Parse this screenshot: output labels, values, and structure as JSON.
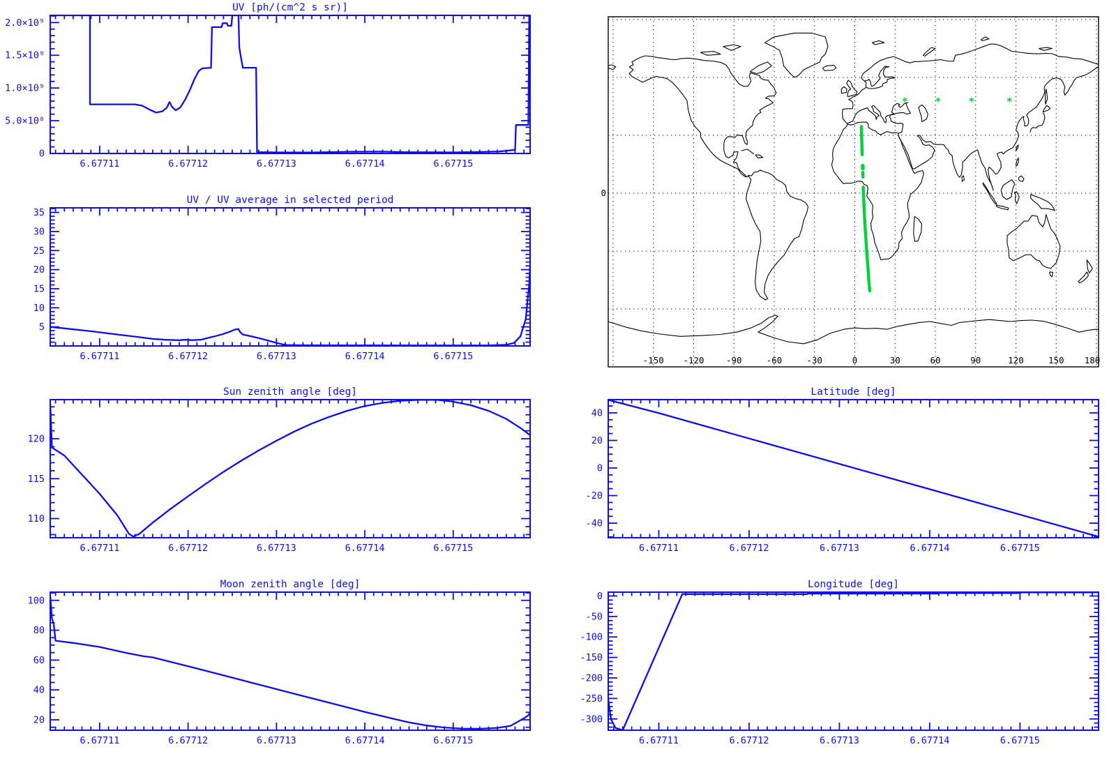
{
  "colors": {
    "plot_blue": "#0d0de8",
    "map_black": "#000000",
    "track_green": "#00d23c",
    "background": "#ffffff"
  },
  "x_axis": {
    "xlim": [
      6.6771044,
      6.6771587
    ],
    "tick_values": [
      6.67711,
      6.67712,
      6.67713,
      6.67714,
      6.67715
    ],
    "tick_labels": [
      "6.67711",
      "6.67712",
      "6.67713",
      "6.67714",
      "6.67715"
    ],
    "minor_step": 1e-06
  },
  "map": {
    "lon_labels": [
      "-150",
      "-120",
      "-90",
      "-60",
      "-30",
      "0",
      "30",
      "60",
      "90",
      "120",
      "150",
      "180"
    ],
    "lon_values": [
      -150,
      -120,
      -90,
      -60,
      -30,
      0,
      30,
      60,
      90,
      120,
      150,
      180
    ],
    "lat_edge_label": "0",
    "grid_step_deg": 30,
    "lon_range": [
      -184,
      184
    ],
    "lat_range": [
      -91,
      91
    ]
  },
  "chart_data": [
    {
      "id": "uv",
      "type": "line",
      "title": "UV [ph/(cm^2 s sr)]",
      "ylim": [
        0,
        2110000000.0
      ],
      "ytick_values": [
        0,
        500000000.0,
        1000000000.0,
        1500000000.0,
        2000000000.0
      ],
      "ytick_labels": [
        "0",
        "5.0×10⁸",
        "1.0×10⁹",
        "1.5×10⁹",
        "2.0×10⁹"
      ],
      "yminor_step": 100000000.0,
      "points": [
        [
          6.6771044,
          2110000000.0
        ],
        [
          6.6771089,
          2110000000.0
        ],
        [
          6.6771089,
          750000000.0
        ],
        [
          6.677114,
          750000000.0
        ],
        [
          6.6771148,
          730000000.0
        ],
        [
          6.6771158,
          660000000.0
        ],
        [
          6.6771164,
          625000000.0
        ],
        [
          6.6771171,
          645000000.0
        ],
        [
          6.6771176,
          700000000.0
        ],
        [
          6.6771179,
          785000000.0
        ],
        [
          6.6771182,
          710000000.0
        ],
        [
          6.6771186,
          660000000.0
        ],
        [
          6.6771191,
          700000000.0
        ],
        [
          6.6771197,
          830000000.0
        ],
        [
          6.6771202,
          970000000.0
        ],
        [
          6.6771207,
          1130000000.0
        ],
        [
          6.6771212,
          1260000000.0
        ],
        [
          6.6771216,
          1300000000.0
        ],
        [
          6.6771226,
          1310000000.0
        ],
        [
          6.6771227,
          1930000000.0
        ],
        [
          6.6771238,
          1930000000.0
        ],
        [
          6.6771239,
          1990000000.0
        ],
        [
          6.6771244,
          1990000000.0
        ],
        [
          6.6771245,
          1950000000.0
        ],
        [
          6.6771249,
          1950000000.0
        ],
        [
          6.677125,
          2110000000.0
        ],
        [
          6.6771257,
          2110000000.0
        ],
        [
          6.6771258,
          1620000000.0
        ],
        [
          6.677126,
          1450000000.0
        ],
        [
          6.6771262,
          1310000000.0
        ],
        [
          6.6771277,
          1310000000.0
        ],
        [
          6.6771278,
          20000000.0
        ],
        [
          6.67713,
          16000000.0
        ],
        [
          6.677134,
          15000000.0
        ],
        [
          6.677138,
          26000000.0
        ],
        [
          6.677142,
          28000000.0
        ],
        [
          6.677145,
          18000000.0
        ],
        [
          6.67715,
          16000000.0
        ],
        [
          6.677153,
          22000000.0
        ],
        [
          6.6771552,
          30000000.0
        ],
        [
          6.6771563,
          45000000.0
        ],
        [
          6.677157,
          55000000.0
        ],
        [
          6.6771571,
          435000000.0
        ],
        [
          6.6771585,
          435000000.0
        ],
        [
          6.6771586,
          2110000000.0
        ],
        [
          6.677159,
          2110000000.0
        ]
      ]
    },
    {
      "id": "uv_ratio",
      "type": "line",
      "title": "UV / UV average in selected period",
      "ylim": [
        0,
        36.2
      ],
      "ytick_values": [
        5,
        10,
        15,
        20,
        25,
        30,
        35
      ],
      "ytick_labels": [
        "5",
        "10",
        "15",
        "20",
        "25",
        "30",
        "35"
      ],
      "yminor_step": 1,
      "points": [
        [
          6.6771044,
          5.0
        ],
        [
          6.677106,
          4.6
        ],
        [
          6.677109,
          3.85
        ],
        [
          6.677112,
          3.0
        ],
        [
          6.677114,
          2.45
        ],
        [
          6.677116,
          1.85
        ],
        [
          6.6771175,
          1.6
        ],
        [
          6.677119,
          1.5
        ],
        [
          6.6771196,
          1.62
        ],
        [
          6.6771205,
          1.52
        ],
        [
          6.6771215,
          1.65
        ],
        [
          6.677122,
          1.95
        ],
        [
          6.677123,
          2.5
        ],
        [
          6.677124,
          3.15
        ],
        [
          6.6771248,
          3.8
        ],
        [
          6.6771253,
          4.3
        ],
        [
          6.6771257,
          4.45
        ],
        [
          6.6771259,
          3.6
        ],
        [
          6.6771262,
          3.0
        ],
        [
          6.677127,
          2.6
        ],
        [
          6.677128,
          2.05
        ],
        [
          6.677129,
          1.45
        ],
        [
          6.67713,
          0.8
        ],
        [
          6.6771307,
          0.4
        ],
        [
          6.6771312,
          0.25
        ],
        [
          6.677133,
          0.18
        ],
        [
          6.67714,
          0.15
        ],
        [
          6.677148,
          0.12
        ],
        [
          6.677154,
          0.15
        ],
        [
          6.677156,
          0.3
        ],
        [
          6.6771569,
          0.8
        ],
        [
          6.6771576,
          2.5
        ],
        [
          6.6771582,
          7.0
        ],
        [
          6.6771586,
          16.0
        ],
        [
          6.677159,
          36.0
        ]
      ]
    },
    {
      "id": "sun_zenith",
      "type": "line",
      "title": "Sun zenith angle [deg]",
      "ylim": [
        107.6,
        124.9
      ],
      "ytick_values": [
        110,
        115,
        120
      ],
      "ytick_labels": [
        "110",
        "115",
        "120"
      ],
      "yminor_step": 1,
      "points": [
        [
          6.6771044,
          124.4
        ],
        [
          6.6771046,
          118.9
        ],
        [
          6.677106,
          117.9
        ],
        [
          6.677108,
          115.5
        ],
        [
          6.67711,
          113.1
        ],
        [
          6.677112,
          110.4
        ],
        [
          6.6771133,
          108.1
        ],
        [
          6.6771138,
          107.75
        ],
        [
          6.6771145,
          108.1
        ],
        [
          6.677116,
          109.5
        ],
        [
          6.677118,
          111.2
        ],
        [
          6.67712,
          112.8
        ],
        [
          6.677122,
          114.35
        ],
        [
          6.677124,
          115.85
        ],
        [
          6.677126,
          117.25
        ],
        [
          6.677128,
          118.55
        ],
        [
          6.67713,
          119.75
        ],
        [
          6.677132,
          120.9
        ],
        [
          6.677134,
          121.9
        ],
        [
          6.677136,
          122.75
        ],
        [
          6.677138,
          123.5
        ],
        [
          6.67714,
          124.1
        ],
        [
          6.677142,
          124.5
        ],
        [
          6.677144,
          124.75
        ],
        [
          6.677146,
          124.87
        ],
        [
          6.6771482,
          124.87
        ],
        [
          6.67715,
          124.65
        ],
        [
          6.677152,
          124.2
        ],
        [
          6.677154,
          123.5
        ],
        [
          6.677156,
          122.5
        ],
        [
          6.6771578,
          121.2
        ],
        [
          6.677159,
          120.2
        ]
      ]
    },
    {
      "id": "moon_zenith",
      "type": "line",
      "title": "Moon zenith angle [deg]",
      "ylim": [
        13,
        105.5
      ],
      "ytick_values": [
        20,
        40,
        60,
        80,
        100
      ],
      "ytick_labels": [
        "20",
        "40",
        "60",
        "80",
        "100"
      ],
      "yminor_step": 5,
      "points": [
        [
          6.6771044,
          103.0
        ],
        [
          6.6771046,
          88.0
        ],
        [
          6.6771048,
          84.0
        ],
        [
          6.677105,
          73.0
        ],
        [
          6.677107,
          71.5
        ],
        [
          6.67711,
          68.8
        ],
        [
          6.677113,
          64.8
        ],
        [
          6.677115,
          62.5
        ],
        [
          6.677116,
          61.8
        ],
        [
          6.67712,
          55.9
        ],
        [
          6.677124,
          49.8
        ],
        [
          6.677128,
          43.6
        ],
        [
          6.677132,
          37.5
        ],
        [
          6.677136,
          31.4
        ],
        [
          6.67714,
          25.3
        ],
        [
          6.677143,
          21.0
        ],
        [
          6.677145,
          18.3
        ],
        [
          6.677147,
          16.2
        ],
        [
          6.677149,
          14.8
        ],
        [
          6.677151,
          14.1
        ],
        [
          6.677153,
          14.0
        ],
        [
          6.677155,
          14.6
        ],
        [
          6.6771565,
          16.0
        ],
        [
          6.677158,
          21.0
        ],
        [
          6.6771585,
          23.0
        ],
        [
          6.677159,
          27.5
        ]
      ]
    },
    {
      "id": "latitude",
      "type": "line",
      "title": "Latitude [deg]",
      "ylim": [
        -50.6,
        49.6
      ],
      "ytick_values": [
        -40,
        -20,
        0,
        20,
        40
      ],
      "ytick_labels": [
        "-40",
        "-20",
        "0",
        "20",
        "40"
      ],
      "yminor_step": 5,
      "points": [
        [
          6.6771044,
          49.4
        ],
        [
          6.67711,
          39.9
        ],
        [
          6.677115,
          30.6
        ],
        [
          6.67712,
          21.4
        ],
        [
          6.677125,
          12.2
        ],
        [
          6.67713,
          3.0
        ],
        [
          6.677135,
          -6.2
        ],
        [
          6.67714,
          -15.4
        ],
        [
          6.677145,
          -24.6
        ],
        [
          6.67715,
          -33.8
        ],
        [
          6.677155,
          -43.0
        ],
        [
          6.677159,
          -50.4
        ]
      ]
    },
    {
      "id": "longitude",
      "type": "line",
      "title": "Longitude [deg]",
      "ylim": [
        -327.6,
        9.3
      ],
      "ytick_values": [
        -300,
        -250,
        -200,
        -150,
        -100,
        -50,
        0
      ],
      "ytick_labels": [
        "-300",
        "-250",
        "-200",
        "-150",
        "-100",
        "-50",
        "0"
      ],
      "yminor_step": 10,
      "points": [
        [
          6.6771044,
          -252
        ],
        [
          6.6771047,
          -300
        ],
        [
          6.6771052,
          -322
        ],
        [
          6.677106,
          -327.6
        ],
        [
          6.6771126,
          4.5
        ],
        [
          6.6771264,
          4.5
        ],
        [
          6.6771265,
          5.8
        ],
        [
          6.677141,
          5.8
        ],
        [
          6.6771411,
          7.0
        ],
        [
          6.67715,
          7.0
        ],
        [
          6.6771501,
          8.6
        ],
        [
          6.677158,
          8.6
        ],
        [
          6.677159,
          9.0
        ]
      ]
    },
    {
      "id": "ground_track",
      "type": "map-track",
      "track_segments_lonlat": [
        [
          [
            4.9,
            34.5
          ],
          [
            5.2,
            27.0
          ],
          [
            5.5,
            20.0
          ]
        ],
        [
          [
            5.8,
            14.5
          ],
          [
            5.9,
            12.6
          ]
        ],
        [
          [
            6.0,
            10.8
          ],
          [
            6.1,
            8.4
          ]
        ],
        [
          [
            6.3,
            3.2
          ],
          [
            6.7,
            -4.0
          ],
          [
            7.2,
            -12.0
          ],
          [
            7.9,
            -20.0
          ],
          [
            8.7,
            -28.0
          ],
          [
            9.5,
            -36.0
          ],
          [
            10.3,
            -43.0
          ],
          [
            10.7,
            -47.5
          ]
        ],
        [
          [
            10.9,
            -48.6
          ],
          [
            11.1,
            -50.6
          ]
        ]
      ],
      "asterisks_lonlat": [
        [
          37.3,
          47.7
        ],
        [
          62,
          47.7
        ],
        [
          87,
          47.7
        ],
        [
          115.3,
          47.7
        ],
        [
          6.0,
          12.9
        ]
      ]
    }
  ]
}
